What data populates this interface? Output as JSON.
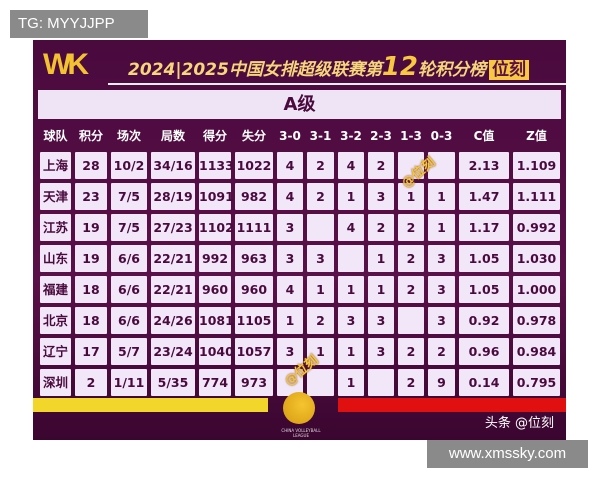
{
  "poster": {
    "logo": "WK",
    "title_prefix": "2024|2025中国女排超级联赛第",
    "round": "12",
    "title_suffix": "轮积分榜",
    "brand_tag": "位刻",
    "grade": "A级",
    "columns": [
      "球队",
      "积分",
      "场次",
      "局数",
      "得分",
      "失分",
      "3-0",
      "3-1",
      "3-2",
      "2-3",
      "1-3",
      "0-3",
      "C值",
      "Z值"
    ],
    "rows": [
      [
        "上海",
        "28",
        "10/2",
        "34/16",
        "1133",
        "1022",
        "4",
        "2",
        "4",
        "2",
        "",
        "",
        "2.13",
        "1.109"
      ],
      [
        "天津",
        "23",
        "7/5",
        "28/19",
        "1091",
        "982",
        "4",
        "2",
        "1",
        "3",
        "1",
        "1",
        "1.47",
        "1.111"
      ],
      [
        "江苏",
        "19",
        "7/5",
        "27/23",
        "1102",
        "1111",
        "3",
        "",
        "4",
        "2",
        "2",
        "1",
        "1.17",
        "0.992"
      ],
      [
        "山东",
        "19",
        "6/6",
        "22/21",
        "992",
        "963",
        "3",
        "3",
        "",
        "1",
        "2",
        "3",
        "1.05",
        "1.030"
      ],
      [
        "福建",
        "18",
        "6/6",
        "22/21",
        "960",
        "960",
        "4",
        "1",
        "1",
        "1",
        "2",
        "3",
        "1.05",
        "1.000"
      ],
      [
        "北京",
        "18",
        "6/6",
        "24/26",
        "1081",
        "1105",
        "1",
        "2",
        "3",
        "3",
        "",
        "3",
        "0.92",
        "0.978"
      ],
      [
        "辽宁",
        "17",
        "5/7",
        "23/24",
        "1040",
        "1057",
        "3",
        "1",
        "1",
        "3",
        "2",
        "2",
        "0.96",
        "0.984"
      ],
      [
        "深圳",
        "2",
        "1/11",
        "5/35",
        "774",
        "973",
        "",
        "",
        "1",
        "",
        "2",
        "9",
        "0.14",
        "0.795"
      ]
    ],
    "watermark": "@位刻",
    "league_logo_text": "CHINA VOLLEYBALL LEAGUE",
    "credit": "头条 @位刻",
    "colors": {
      "background": "#4a0a3e",
      "cell": "#f1e7f8",
      "yellow_bar": "#f3d62a",
      "red_bar": "#e01010",
      "accent": "#f7c840"
    }
  },
  "overlays": {
    "top_left": "TG: MYYJJPP",
    "bottom_right": "www.xmssky.com"
  }
}
